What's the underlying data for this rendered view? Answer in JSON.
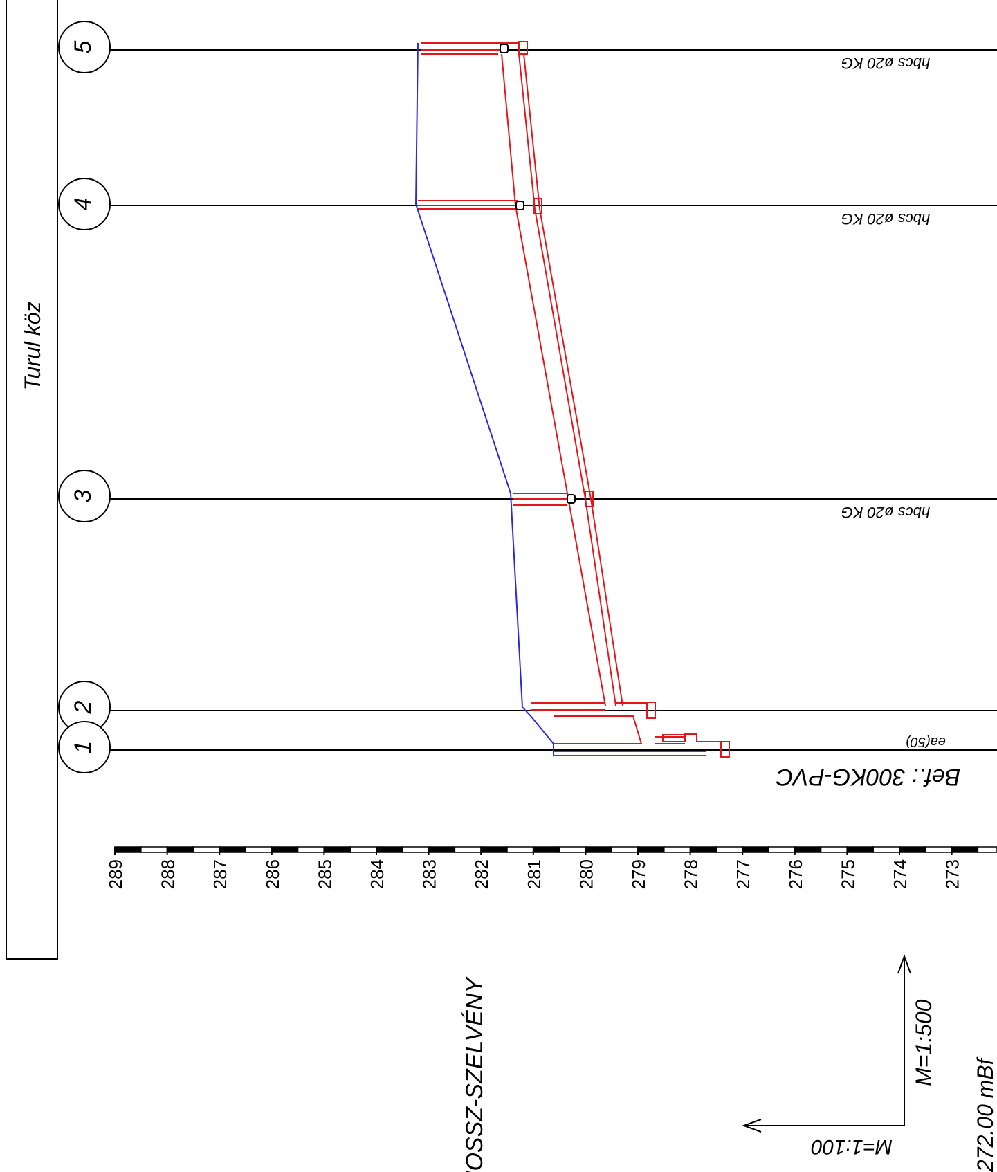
{
  "street_label": "Turul köz",
  "stations": [
    {
      "number": "1",
      "note": "ea(50)"
    },
    {
      "number": "2",
      "note": ""
    },
    {
      "number": "3",
      "note": "hbcs ø20 KG"
    },
    {
      "number": "4",
      "note": "hbcs ø20 KG"
    },
    {
      "number": "5",
      "note": "hbcs ø20 KG"
    }
  ],
  "connection_note": "Bef.:  300KG-PVC",
  "elevation_ticks": [
    "289",
    "288",
    "287",
    "286",
    "285",
    "284",
    "283",
    "282",
    "281",
    "280",
    "279",
    "278",
    "277",
    "276",
    "275",
    "274",
    "273"
  ],
  "title": "HOSSZ-SZELVÉNY",
  "scale_vertical": "M=1:500",
  "scale_horizontal": "M=1:100",
  "datum": "272.00 mBf",
  "colors": {
    "terrain": "#2a2ad8",
    "sewer": "#e3161b",
    "ink": "#000000"
  }
}
